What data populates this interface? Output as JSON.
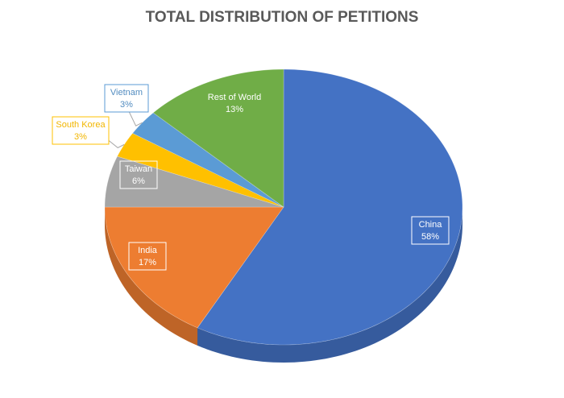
{
  "chart_data": {
    "type": "pie",
    "title": "TOTAL DISTRIBUTION OF PETITIONS",
    "categories": [
      "China",
      "India",
      "Taiwan",
      "South Korea",
      "Vietnam",
      "Rest of World"
    ],
    "values": [
      58,
      17,
      6,
      3,
      3,
      13
    ],
    "value_labels": [
      "58%",
      "17%",
      "6%",
      "3%",
      "3%",
      "13%"
    ],
    "colors": [
      "#4472c4",
      "#ed7d31",
      "#a5a5a5",
      "#ffc000",
      "#5b9bd5",
      "#70ad47"
    ]
  }
}
